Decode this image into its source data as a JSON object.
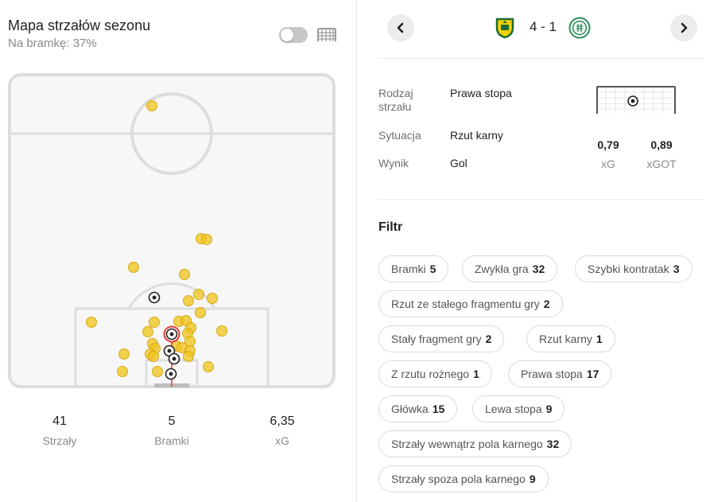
{
  "left": {
    "title": "Mapa strzałów sezonu",
    "subtitle": "Na bramkę: 37%",
    "toggle_on": false,
    "icons": [
      "toggle-switch",
      "goal-net-icon"
    ],
    "stats": [
      {
        "value": "41",
        "label": "Strzały"
      },
      {
        "value": "5",
        "label": "Bramki"
      },
      {
        "value": "6,35",
        "label": "xG"
      }
    ]
  },
  "colors": {
    "shot_fill": "#f0c419",
    "shot_stroke": "#d8a910",
    "selected_ring": "#e53935",
    "pitch_line": "#dddddd",
    "pitch_bg": "#f7f7f7",
    "chip_border": "#d9d9d9"
  },
  "match": {
    "score": "4 - 1",
    "prev_icon": "chevron-left-icon",
    "next_icon": "chevron-right-icon",
    "home_logo": "brondby-logo",
    "away_logo": "viborg-logo"
  },
  "shot_details": {
    "rows": [
      {
        "label": "Rodzaj strzału",
        "value": "Prawa stopa"
      },
      {
        "label": "Sytuacja",
        "value": "Rzut karny"
      },
      {
        "label": "Wynik",
        "value": "Gol"
      }
    ],
    "xg": {
      "value": "0,79",
      "label": "xG"
    },
    "xgot": {
      "value": "0,89",
      "label": "xGOT"
    }
  },
  "filter": {
    "heading": "Filtr",
    "chips": [
      {
        "label": "Bramki",
        "count": "5"
      },
      {
        "label": "Zwykła gra",
        "count": "32"
      },
      {
        "label": "Szybki kontratak",
        "count": "3"
      },
      {
        "label": "Rzut ze stałego fragmentu gry",
        "count": "2"
      },
      {
        "label": "Stały fragment gry",
        "count": "2"
      },
      {
        "label": "Rzut karny",
        "count": "1"
      },
      {
        "label": "Z rzutu rożnego",
        "count": "1"
      },
      {
        "label": "Prawa stopa",
        "count": "17"
      },
      {
        "label": "Główka",
        "count": "15"
      },
      {
        "label": "Lewa stopa",
        "count": "9"
      },
      {
        "label": "Strzały wewnątrz pola karnego",
        "count": "32"
      },
      {
        "label": "Strzały spoza pola karnego",
        "count": "9"
      }
    ]
  }
}
